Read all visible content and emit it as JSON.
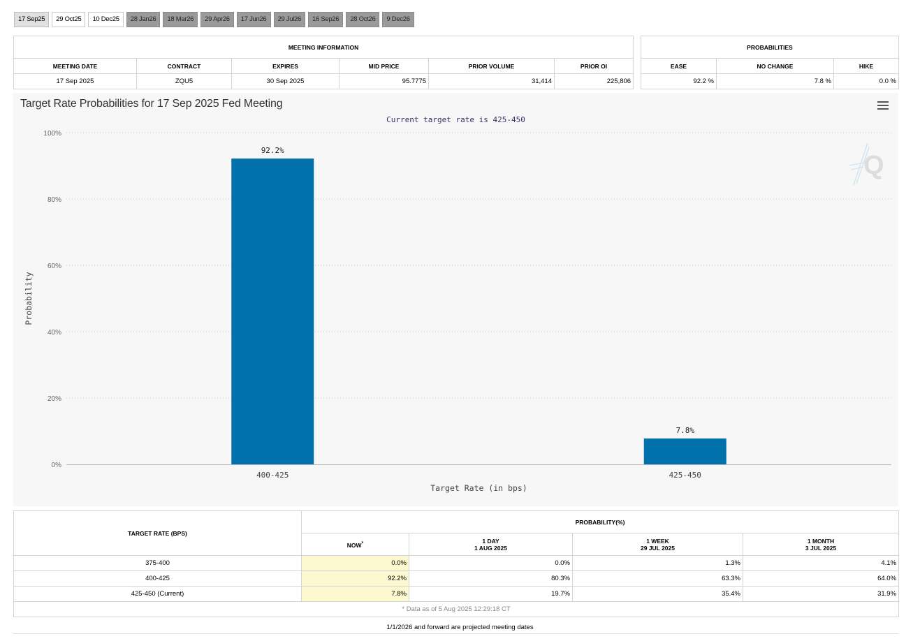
{
  "tabs": [
    {
      "label": "17 Sep25",
      "state": "active"
    },
    {
      "label": "29 Oct25",
      "state": "normal"
    },
    {
      "label": "10 Dec25",
      "state": "normal"
    },
    {
      "label": "28 Jan26",
      "state": "disabled"
    },
    {
      "label": "18 Mar26",
      "state": "disabled"
    },
    {
      "label": "29 Apr26",
      "state": "disabled"
    },
    {
      "label": "17 Jun26",
      "state": "disabled"
    },
    {
      "label": "29 Jul26",
      "state": "disabled"
    },
    {
      "label": "16 Sep26",
      "state": "disabled"
    },
    {
      "label": "28 Oct26",
      "state": "disabled"
    },
    {
      "label": "9 Dec26",
      "state": "disabled"
    }
  ],
  "meeting_info": {
    "header": "MEETING INFORMATION",
    "columns": [
      "MEETING DATE",
      "CONTRACT",
      "EXPIRES",
      "MID PRICE",
      "PRIOR VOLUME",
      "PRIOR OI"
    ],
    "row": [
      "17 Sep 2025",
      "ZQU5",
      "30 Sep 2025",
      "95.7775",
      "31,414",
      "225,806"
    ]
  },
  "probabilities": {
    "header": "PROBABILITIES",
    "columns": [
      "EASE",
      "NO CHANGE",
      "HIKE"
    ],
    "row": [
      "92.2 %",
      "7.8 %",
      "0.0 %"
    ]
  },
  "chart_data": {
    "type": "bar",
    "title": "Target Rate Probabilities for 17 Sep 2025 Fed Meeting",
    "subtitle": "Current target rate is 425-450",
    "categories": [
      "400-425",
      "425-450"
    ],
    "values": [
      92.2,
      7.8
    ],
    "data_labels": [
      "92.2%",
      "7.8%"
    ],
    "xlabel": "Target Rate (in bps)",
    "ylabel": "Probability",
    "ylim": [
      0,
      100
    ],
    "yticks": [
      0,
      20,
      40,
      60,
      80,
      100
    ],
    "ytick_labels": [
      "0%",
      "20%",
      "40%",
      "60%",
      "80%",
      "100%"
    ],
    "grid": true,
    "color": "#0071AA"
  },
  "target_table": {
    "rate_header": "TARGET RATE (BPS)",
    "prob_header": "PROBABILITY(%)",
    "columns": [
      {
        "line1": "NOW",
        "line2": "",
        "sup": "*"
      },
      {
        "line1": "1 DAY",
        "line2": "1 AUG 2025",
        "sup": ""
      },
      {
        "line1": "1 WEEK",
        "line2": "29 JUL 2025",
        "sup": ""
      },
      {
        "line1": "1 MONTH",
        "line2": "3 JUL 2025",
        "sup": ""
      }
    ],
    "rows": [
      {
        "rate": "375-400",
        "values": [
          "0.0%",
          "0.0%",
          "1.3%",
          "4.1%"
        ]
      },
      {
        "rate": "400-425",
        "values": [
          "92.2%",
          "80.3%",
          "63.3%",
          "64.0%"
        ]
      },
      {
        "rate": "425-450 (Current)",
        "values": [
          "7.8%",
          "19.7%",
          "35.4%",
          "31.9%"
        ]
      }
    ],
    "note": "* Data as of 5 Aug 2025 12:29:18 CT"
  },
  "footer": "1/1/2026 and forward are projected meeting dates",
  "icons": {
    "menu": "hamburger-menu-icon",
    "logo": "quikstrike-q-logo-icon"
  }
}
